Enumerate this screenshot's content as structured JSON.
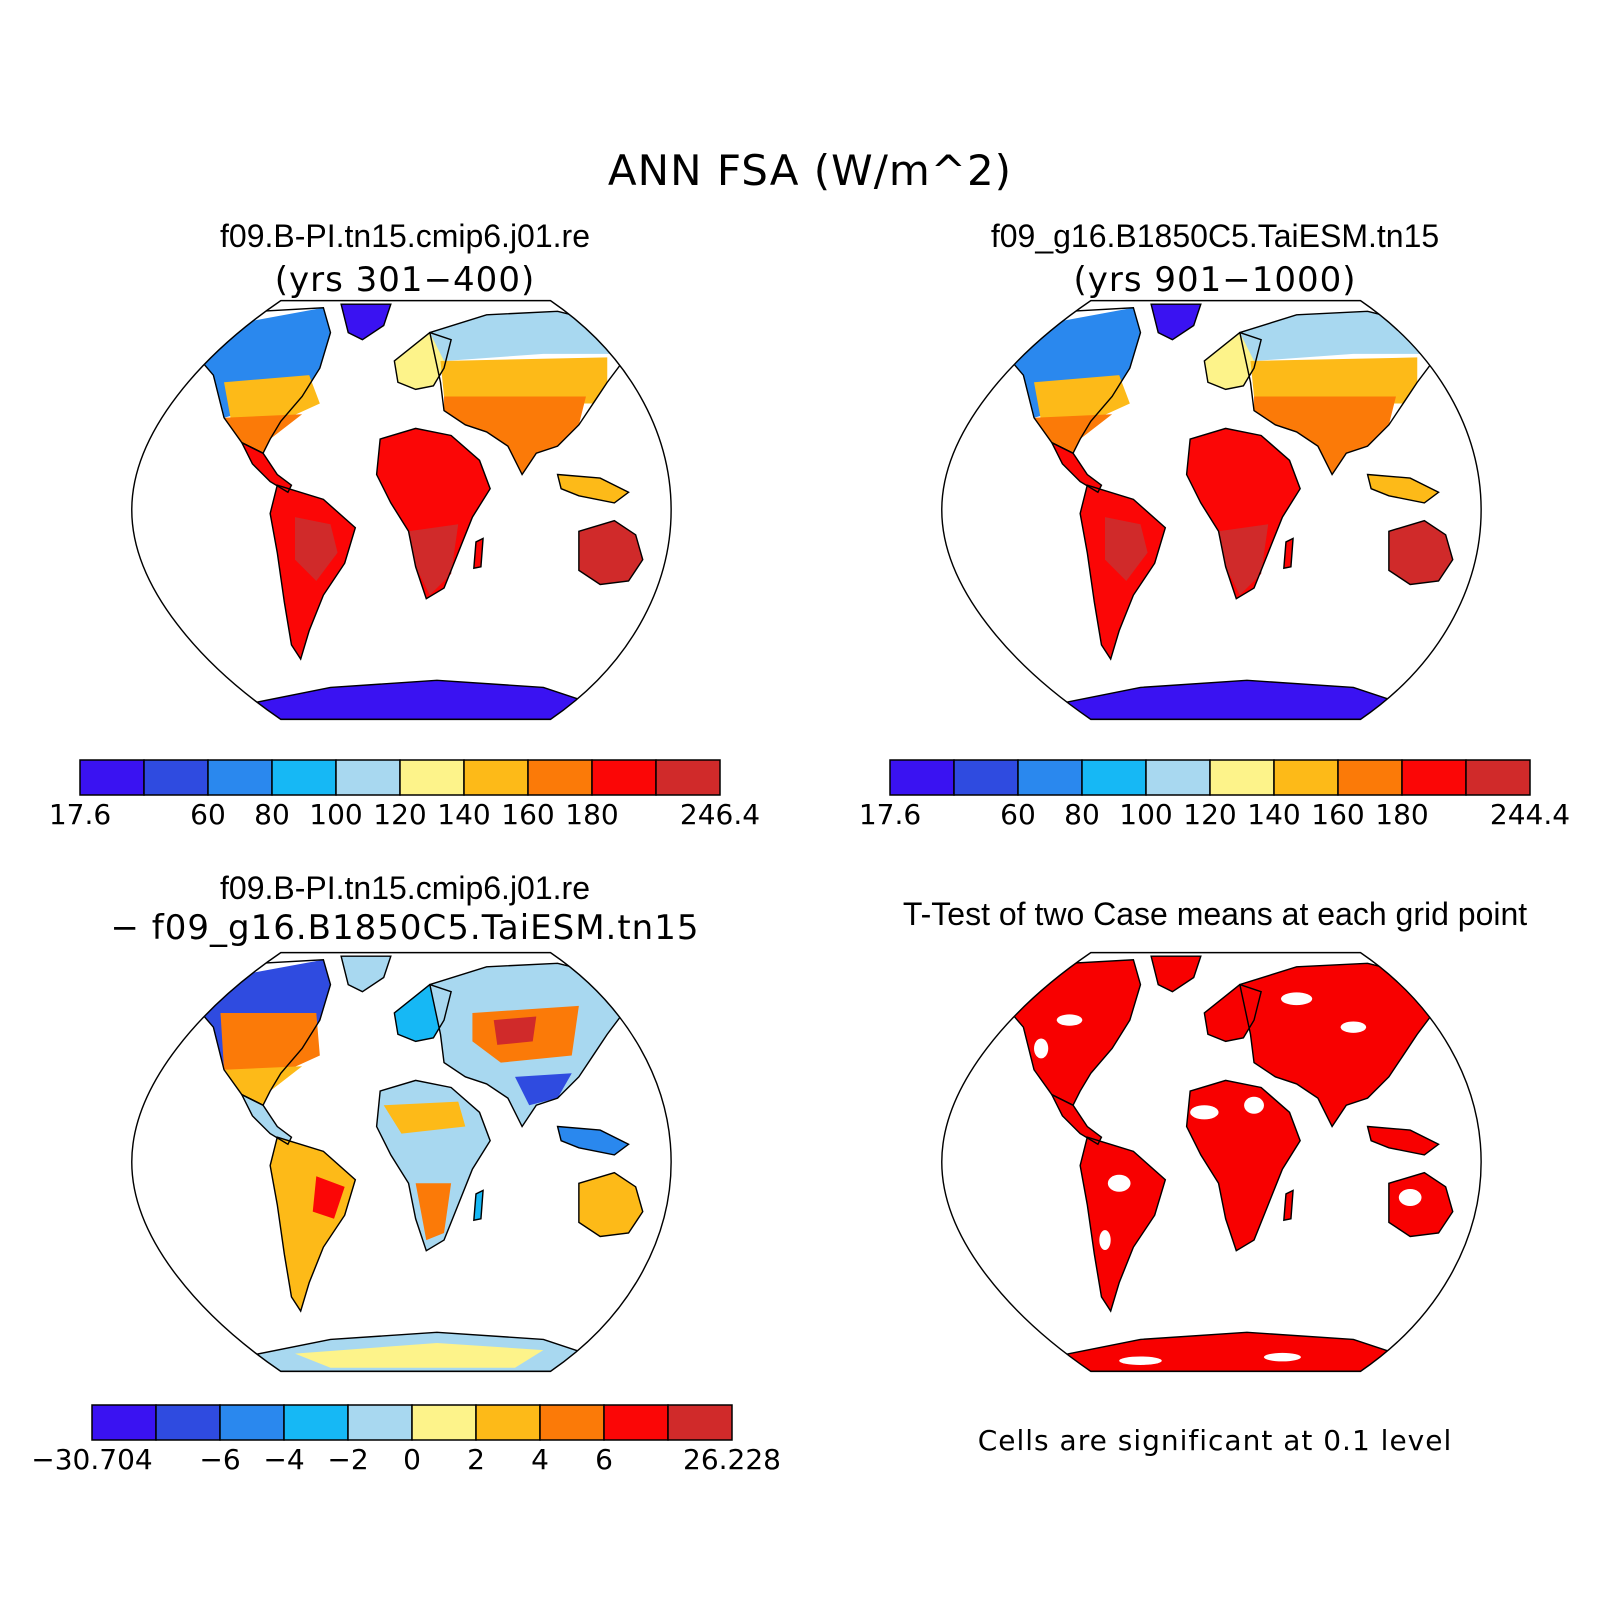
{
  "title": "ANN FSA (W/m^2)",
  "panels": [
    {
      "id": "case1",
      "title": "f09.B-PI.tn15.cmip6.j01.re",
      "subtitle": "(yrs 301−400)",
      "colorbar": {
        "colors": [
          "#3a12f2",
          "#2f4be0",
          "#2a88ee",
          "#16b8f5",
          "#a8d8f0",
          "#fdf38a",
          "#fdba18",
          "#fb7a08",
          "#fb0606",
          "#d02a2a"
        ],
        "labels": [
          "17.6",
          "",
          "60",
          "80",
          "100",
          "120",
          "140",
          "160",
          "180",
          "",
          "246.4"
        ]
      }
    },
    {
      "id": "case2",
      "title": "f09_g16.B1850C5.TaiESM.tn15",
      "subtitle": "(yrs 901−1000)",
      "colorbar": {
        "colors": [
          "#3a12f2",
          "#2f4be0",
          "#2a88ee",
          "#16b8f5",
          "#a8d8f0",
          "#fdf38a",
          "#fdba18",
          "#fb7a08",
          "#fb0606",
          "#d02a2a"
        ],
        "labels": [
          "17.6",
          "",
          "60",
          "80",
          "100",
          "120",
          "140",
          "160",
          "180",
          "",
          "244.4"
        ]
      }
    },
    {
      "id": "diff",
      "title": "f09.B-PI.tn15.cmip6.j01.re",
      "subtitle": "− f09_g16.B1850C5.TaiESM.tn15",
      "colorbar": {
        "colors": [
          "#3a12f2",
          "#2f4be0",
          "#2a88ee",
          "#16b8f5",
          "#a8d8f0",
          "#fdf38a",
          "#fdba18",
          "#fb7a08",
          "#fb0606",
          "#d02a2a"
        ],
        "labels": [
          "−30.704",
          "",
          "−6",
          "−4",
          "−2",
          "0",
          "2",
          "4",
          "6",
          "",
          "26.228"
        ]
      }
    },
    {
      "id": "ttest",
      "title": "T-Test of two Case means at each grid point",
      "note": "Cells are significant at 0.1 level"
    }
  ]
}
